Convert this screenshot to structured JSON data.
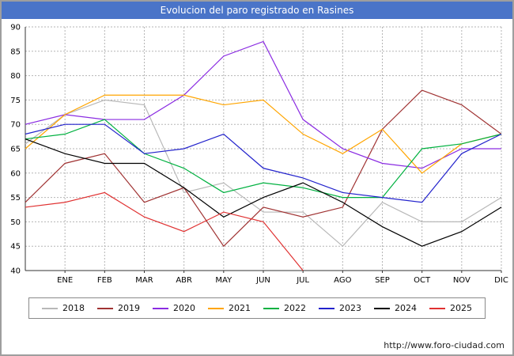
{
  "window": {
    "title": "Evolucion del paro registrado en Rasines"
  },
  "colors": {
    "title_bar": "#4a74c8",
    "grid": "#b5b5b5",
    "axis": "#333333"
  },
  "footer": {
    "url": "http://www.foro-ciudad.com"
  },
  "chart_data": {
    "type": "line",
    "title": "Evolucion del paro registrado en Rasines",
    "xlabel": "",
    "ylabel": "",
    "ylim": [
      40,
      90
    ],
    "y_ticks": [
      40,
      45,
      50,
      55,
      60,
      65,
      70,
      75,
      80,
      85,
      90
    ],
    "grid": true,
    "legend_position": "bottom",
    "x_labels": [
      "ENE",
      "FEB",
      "MAR",
      "ABR",
      "MAY",
      "JUN",
      "JUL",
      "AGO",
      "SEP",
      "OCT",
      "NOV",
      "DIC"
    ],
    "x_note": "each series has an extra unlabeled starting point at the left plot edge before ENE",
    "series": [
      {
        "name": "2018",
        "color": "#b8b8b8",
        "values": [
          66,
          72,
          75,
          74,
          56,
          58,
          52,
          52,
          45,
          54,
          50,
          50,
          55
        ]
      },
      {
        "name": "2019",
        "color": "#a03333",
        "values": [
          54,
          62,
          64,
          54,
          57,
          45,
          53,
          51,
          53,
          69,
          77,
          74,
          68
        ]
      },
      {
        "name": "2020",
        "color": "#8a2be2",
        "values": [
          70,
          72,
          71,
          71,
          76,
          84,
          87,
          71,
          65,
          62,
          61,
          65,
          65
        ]
      },
      {
        "name": "2021",
        "color": "#ffa500",
        "values": [
          65,
          72,
          76,
          76,
          76,
          74,
          75,
          68,
          64,
          69,
          60,
          66,
          68
        ]
      },
      {
        "name": "2022",
        "color": "#00b140",
        "values": [
          67,
          68,
          71,
          64,
          61,
          56,
          58,
          57,
          55,
          55,
          65,
          66,
          68
        ]
      },
      {
        "name": "2023",
        "color": "#2222cc",
        "values": [
          68,
          70,
          70,
          64,
          65,
          68,
          61,
          59,
          56,
          55,
          54,
          64,
          68
        ]
      },
      {
        "name": "2024",
        "color": "#000000",
        "values": [
          67,
          64,
          62,
          62,
          57,
          51,
          55,
          58,
          54,
          49,
          45,
          48,
          53
        ]
      },
      {
        "name": "2025",
        "color": "#e03131",
        "values": [
          53,
          54,
          56,
          51,
          48,
          52,
          50,
          40
        ]
      }
    ]
  }
}
